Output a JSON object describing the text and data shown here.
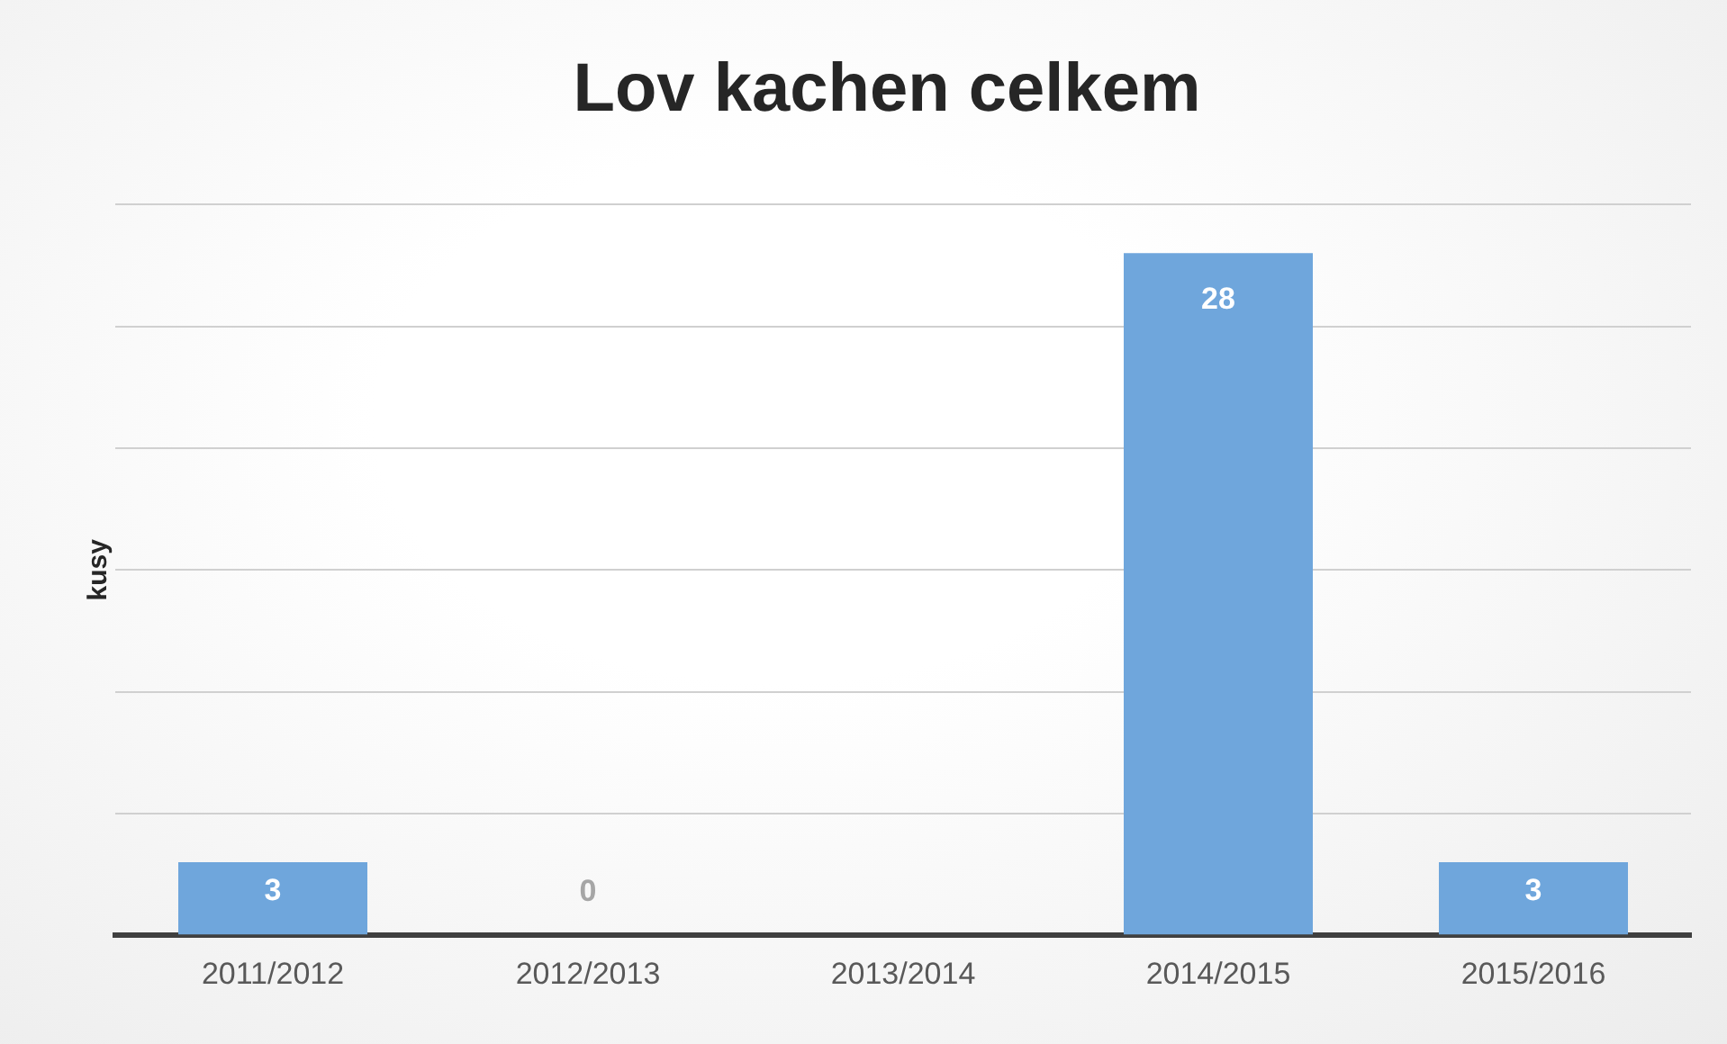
{
  "chart_data": {
    "type": "bar",
    "title": "Lov kachen celkem",
    "ylabel": "kusy",
    "categories": [
      "2011/2012",
      "2012/2013",
      "2013/2014",
      "2014/2015",
      "2015/2016"
    ],
    "values": [
      3,
      0,
      0,
      28,
      3
    ],
    "color": "#6fa6dc",
    "value_labels": [
      "3",
      "0",
      null,
      "28",
      "3"
    ],
    "ylim": [
      0,
      30
    ],
    "yticks": [
      {
        "value": 0,
        "label": null
      },
      {
        "value": 5,
        "label": null
      },
      {
        "value": 10,
        "label": null
      },
      {
        "value": 15,
        "label": null
      },
      {
        "value": 20,
        "label": null
      },
      {
        "value": 25,
        "label": null
      },
      {
        "value": 30,
        "label": null
      }
    ],
    "tick_labels": "x",
    "grid": "y",
    "legend": false
  }
}
